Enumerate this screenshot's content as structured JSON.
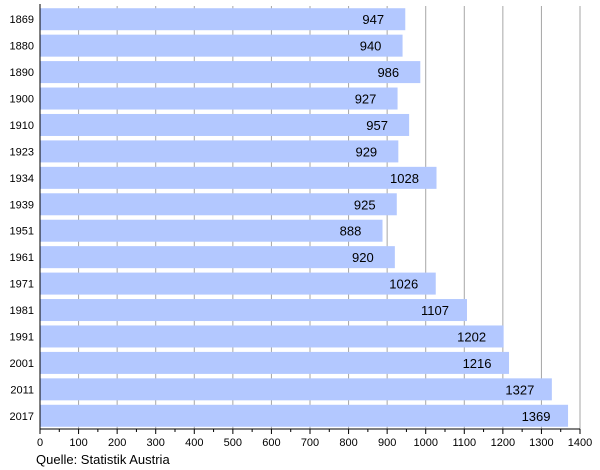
{
  "chart_data": {
    "type": "bar",
    "orientation": "horizontal",
    "categories": [
      "1869",
      "1880",
      "1890",
      "1900",
      "1910",
      "1923",
      "1934",
      "1939",
      "1951",
      "1961",
      "1971",
      "1981",
      "1991",
      "2001",
      "2011",
      "2017"
    ],
    "values": [
      947,
      940,
      986,
      927,
      957,
      929,
      1028,
      925,
      888,
      920,
      1026,
      1107,
      1202,
      1216,
      1327,
      1369
    ],
    "xlim": [
      0,
      1400
    ],
    "xticks": [
      0,
      100,
      200,
      300,
      400,
      500,
      600,
      700,
      800,
      900,
      1000,
      1100,
      1200,
      1300,
      1400
    ],
    "grid": "vertical",
    "bar_color": "#b3c8ff",
    "title": "",
    "xlabel": "",
    "ylabel": ""
  },
  "source": "Quelle: Statistik Austria"
}
